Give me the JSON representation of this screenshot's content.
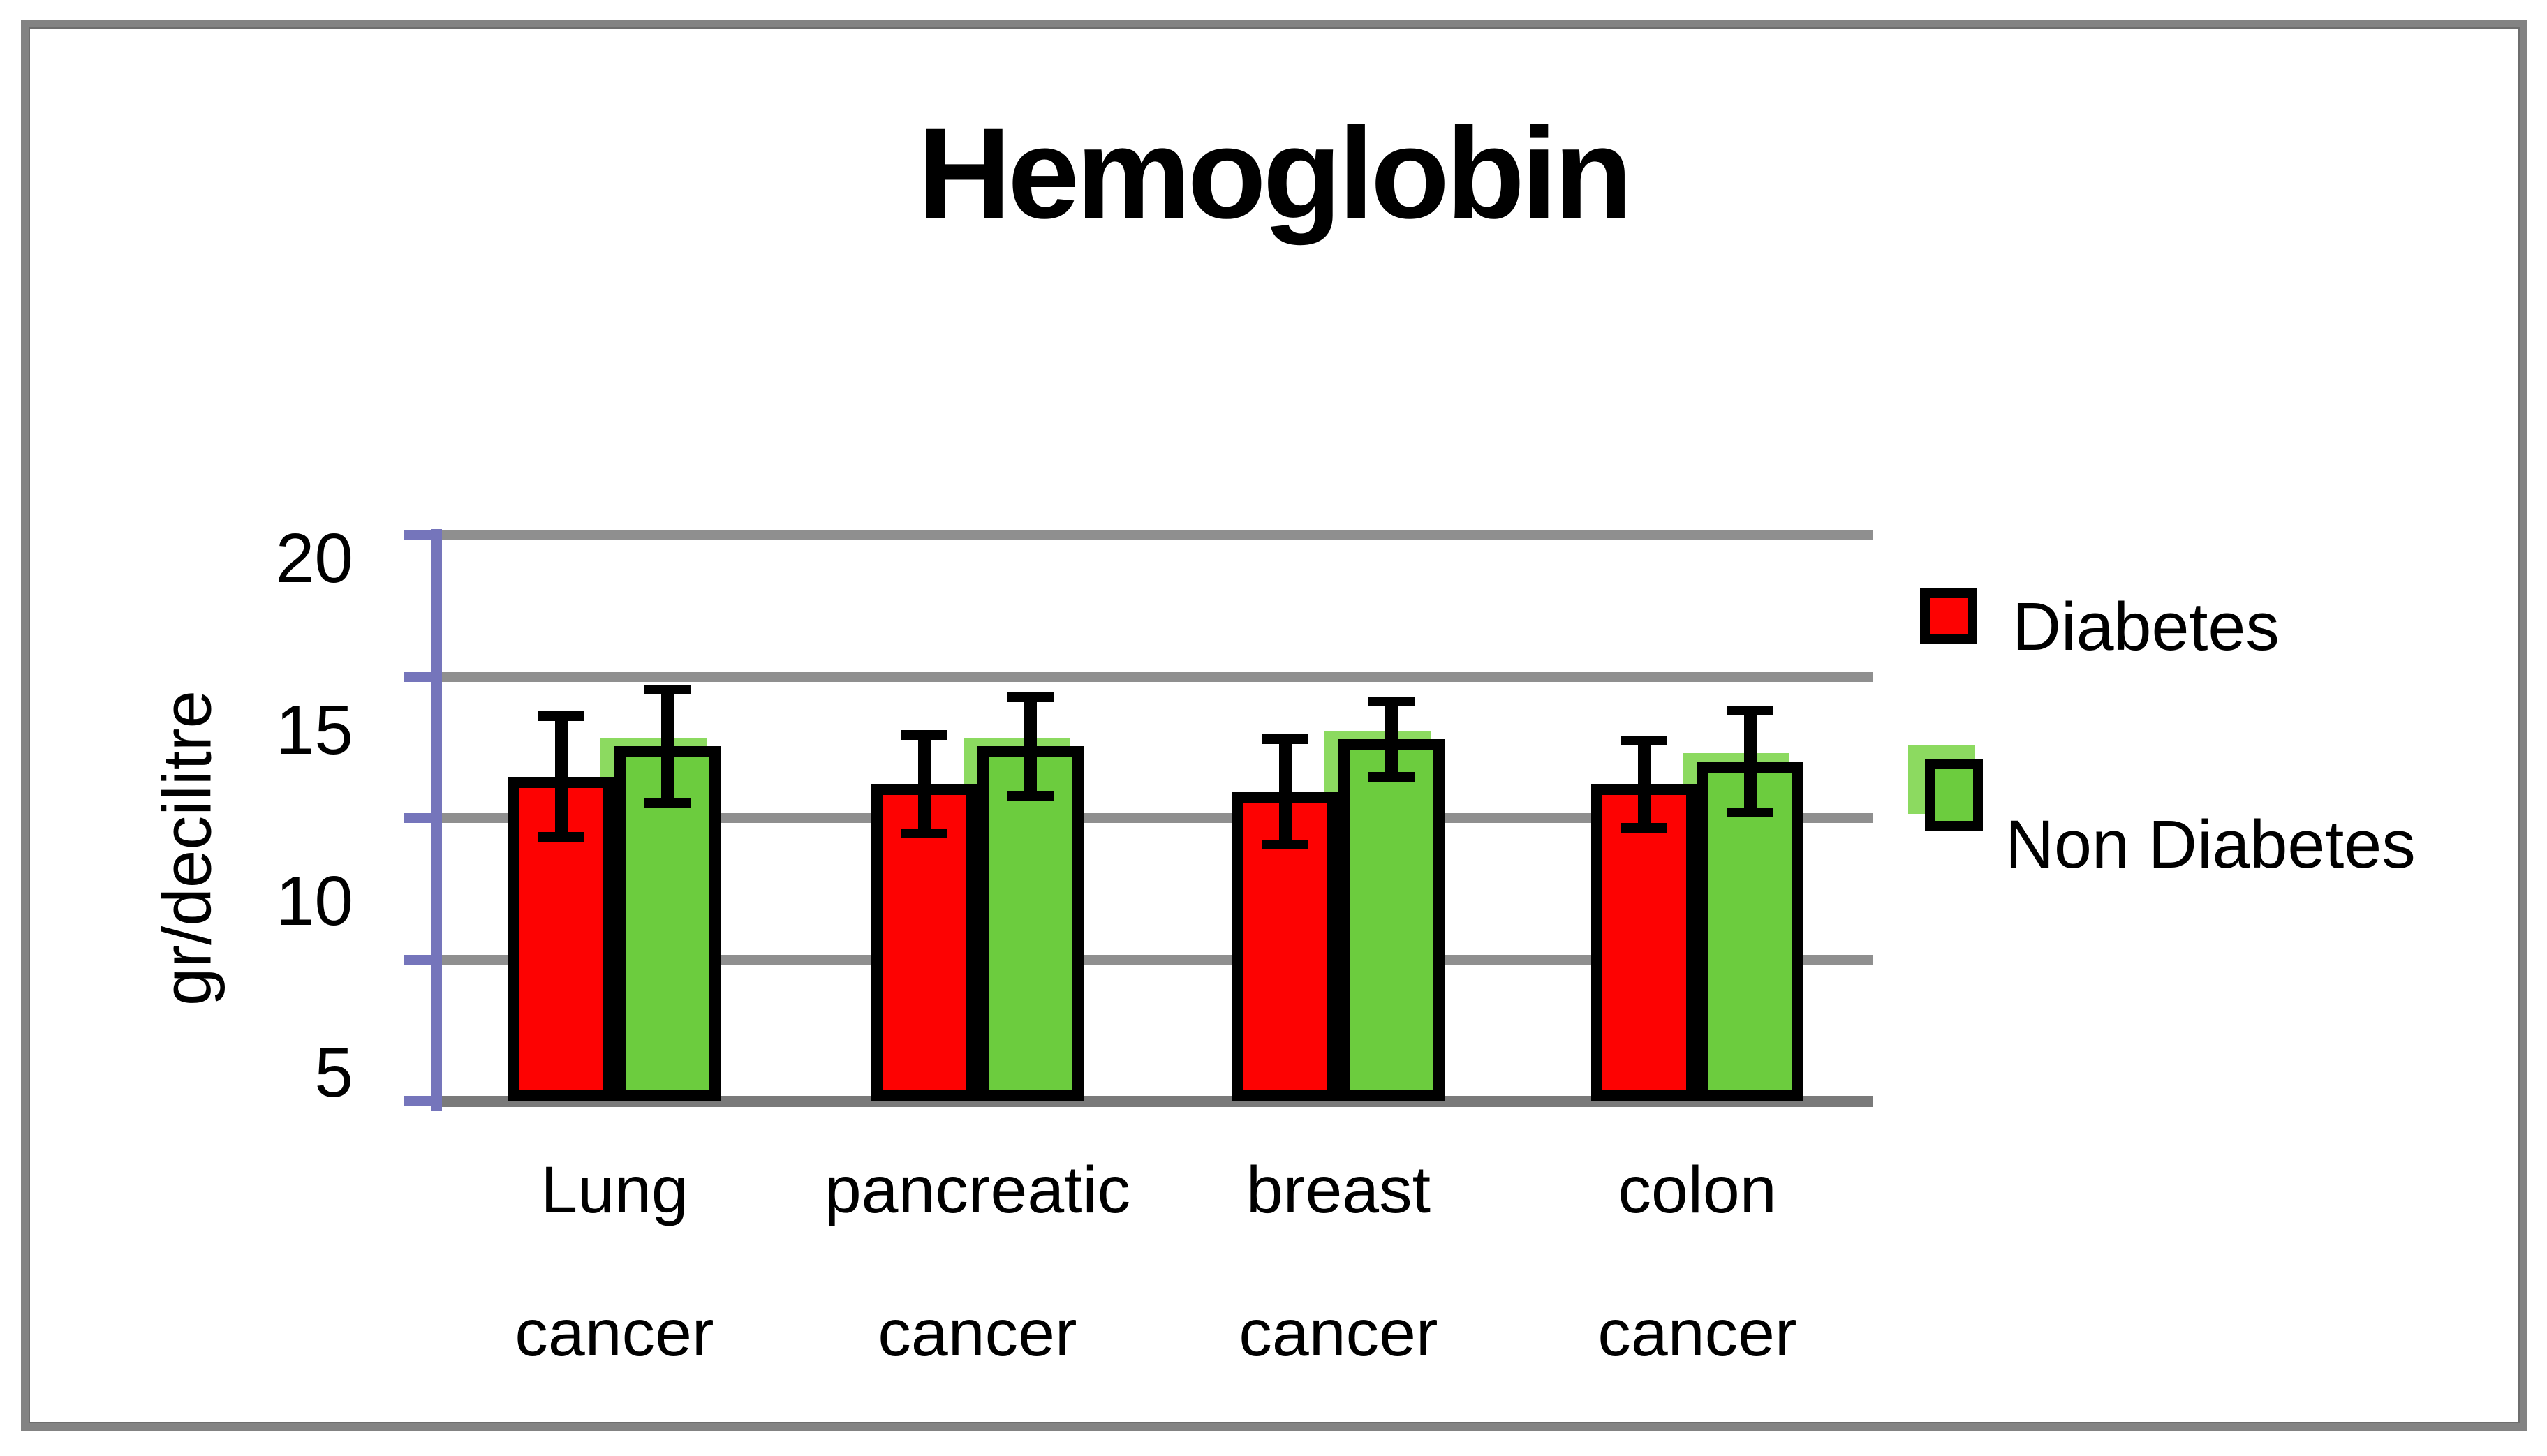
{
  "figure": {
    "background": "#ffffff",
    "border_color": "#838383"
  },
  "chart_data": {
    "type": "bar",
    "title": "Hemoglobin",
    "ylabel": "gr/decilitre",
    "units": "gr/decilitre",
    "ylim": [
      5,
      20
    ],
    "yticks": [
      20,
      15,
      10,
      5
    ],
    "grid": true,
    "gridline_count": 5,
    "legend_position": "right",
    "categories": [
      "Lung cancer",
      "pancreatic cancer",
      "breast cancer",
      "colon cancer"
    ],
    "category_lines": {
      "line1": [
        "Lung",
        "pancreatic",
        "breast",
        "colon"
      ],
      "line2": [
        "cancer",
        "cancer",
        "cancer",
        "cancer"
      ]
    },
    "series": [
      {
        "name": "Diabetes",
        "color": "#FD0202",
        "values": [
          13.6,
          13.4,
          13.2,
          13.4
        ],
        "errors": [
          1.6,
          1.3,
          1.4,
          1.15
        ]
      },
      {
        "name": "Non Diabetes",
        "color": "#6CCC3E",
        "shadow_color": "#8CDA60",
        "values": [
          14.4,
          14.4,
          14.6,
          14.0
        ],
        "errors": [
          1.5,
          1.3,
          1.0,
          1.35
        ]
      }
    ],
    "colors": {
      "axis_line": "#7575BB",
      "gridline": "#8F8F8F",
      "bottom_axis": "#7A7A7A",
      "bar_outline": "#000000",
      "error_bar": "#000000",
      "text": "#000000"
    }
  }
}
